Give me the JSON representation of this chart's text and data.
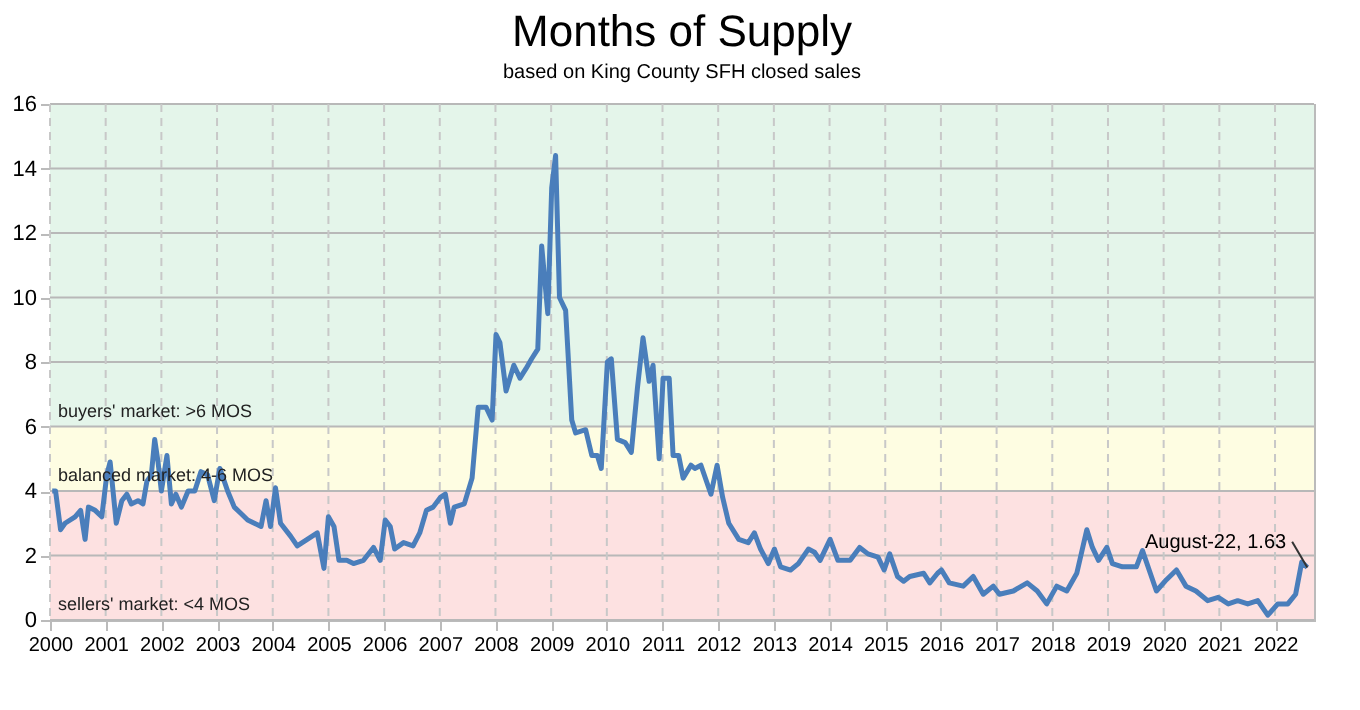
{
  "chart_data": {
    "type": "line",
    "title": "Months of Supply",
    "subtitle": "based on King County SFH closed sales",
    "x": [
      2000.04,
      2000.1,
      2000.19,
      2000.27,
      2000.45,
      2000.55,
      2000.63,
      2000.69,
      2000.81,
      2000.93,
      2001.02,
      2001.08,
      2001.19,
      2001.29,
      2001.38,
      2001.46,
      2001.58,
      2001.67,
      2001.74,
      2001.82,
      2001.88,
      2001.94,
      2002.0,
      2002.1,
      2002.18,
      2002.26,
      2002.36,
      2002.48,
      2002.6,
      2002.71,
      2002.83,
      2002.95,
      2003.05,
      2003.19,
      2003.31,
      2003.43,
      2003.55,
      2003.67,
      2003.79,
      2003.88,
      2003.96,
      2004.05,
      2004.14,
      2004.32,
      2004.44,
      2004.62,
      2004.8,
      2004.92,
      2005.0,
      2005.1,
      2005.19,
      2005.33,
      2005.45,
      2005.63,
      2005.81,
      2005.93,
      2006.02,
      2006.11,
      2006.19,
      2006.35,
      2006.52,
      2006.64,
      2006.76,
      2006.88,
      2007.01,
      2007.1,
      2007.19,
      2007.26,
      2007.44,
      2007.58,
      2007.69,
      2007.83,
      2007.94,
      2008.01,
      2008.08,
      2008.19,
      2008.33,
      2008.44,
      2008.55,
      2008.65,
      2008.76,
      2008.83,
      2008.94,
      2009.01,
      2009.08,
      2009.15,
      2009.26,
      2009.37,
      2009.44,
      2009.62,
      2009.73,
      2009.83,
      2009.9,
      2010.01,
      2010.08,
      2010.19,
      2010.33,
      2010.44,
      2010.55,
      2010.65,
      2010.76,
      2010.83,
      2010.94,
      2011.01,
      2011.12,
      2011.19,
      2011.29,
      2011.37,
      2011.51,
      2011.58,
      2011.69,
      2011.87,
      2011.98,
      2012.08,
      2012.19,
      2012.37,
      2012.54,
      2012.65,
      2012.76,
      2012.9,
      2013.01,
      2013.12,
      2013.3,
      2013.44,
      2013.62,
      2013.73,
      2013.83,
      2014.01,
      2014.15,
      2014.37,
      2014.54,
      2014.69,
      2014.87,
      2014.98,
      2015.08,
      2015.22,
      2015.33,
      2015.44,
      2015.69,
      2015.8,
      2015.94,
      2016.01,
      2016.15,
      2016.4,
      2016.58,
      2016.76,
      2016.94,
      2017.05,
      2017.3,
      2017.55,
      2017.73,
      2017.9,
      2018.08,
      2018.26,
      2018.44,
      2018.62,
      2018.72,
      2018.83,
      2018.98,
      2019.08,
      2019.26,
      2019.51,
      2019.62,
      2019.76,
      2019.87,
      2020.05,
      2020.23,
      2020.4,
      2020.58,
      2020.79,
      2020.98,
      2021.16,
      2021.33,
      2021.51,
      2021.69,
      2021.87,
      2022.05,
      2022.23,
      2022.37,
      2022.48,
      2022.58
    ],
    "series": [
      {
        "color": "#4a7ebb",
        "values": [
          4.0,
          4.0,
          2.8,
          3.0,
          3.2,
          3.4,
          2.5,
          3.5,
          3.4,
          3.2,
          4.5,
          4.9,
          3.0,
          3.7,
          3.9,
          3.6,
          3.7,
          3.6,
          4.3,
          4.5,
          5.6,
          4.9,
          4.0,
          5.1,
          3.6,
          3.9,
          3.5,
          4.0,
          4.0,
          4.6,
          4.5,
          3.7,
          4.7,
          4.0,
          3.5,
          3.3,
          3.1,
          3.0,
          2.9,
          3.7,
          2.9,
          4.1,
          3.0,
          2.6,
          2.3,
          2.5,
          2.7,
          1.6,
          3.2,
          2.9,
          1.85,
          1.85,
          1.75,
          1.85,
          2.25,
          1.85,
          3.1,
          2.9,
          2.2,
          2.4,
          2.3,
          2.7,
          3.4,
          3.5,
          3.8,
          3.9,
          3.0,
          3.5,
          3.6,
          4.4,
          6.6,
          6.6,
          6.2,
          8.85,
          8.6,
          7.1,
          7.9,
          7.5,
          7.8,
          8.1,
          8.4,
          11.6,
          9.5,
          13.4,
          14.4,
          10.0,
          9.6,
          6.2,
          5.8,
          5.9,
          5.1,
          5.1,
          4.7,
          8.0,
          8.1,
          5.6,
          5.5,
          5.2,
          7.2,
          8.75,
          7.4,
          7.9,
          5.0,
          7.5,
          7.5,
          5.1,
          5.1,
          4.4,
          4.8,
          4.7,
          4.8,
          3.9,
          4.8,
          3.8,
          3.0,
          2.5,
          2.4,
          2.7,
          2.2,
          1.75,
          2.2,
          1.65,
          1.55,
          1.75,
          2.2,
          2.1,
          1.85,
          2.5,
          1.85,
          1.85,
          2.25,
          2.05,
          1.95,
          1.55,
          2.05,
          1.35,
          1.2,
          1.35,
          1.45,
          1.15,
          1.45,
          1.55,
          1.15,
          1.05,
          1.35,
          0.8,
          1.05,
          0.8,
          0.9,
          1.15,
          0.9,
          0.5,
          1.05,
          0.9,
          1.45,
          2.8,
          2.25,
          1.85,
          2.25,
          1.75,
          1.65,
          1.65,
          2.15,
          1.45,
          0.9,
          1.25,
          1.55,
          1.05,
          0.9,
          0.6,
          0.7,
          0.5,
          0.6,
          0.5,
          0.6,
          0.15,
          0.5,
          0.5,
          0.8,
          1.8,
          1.63
        ]
      }
    ],
    "xlim": [
      2000,
      2022.7
    ],
    "xticks": [
      2000,
      2001,
      2002,
      2003,
      2004,
      2005,
      2006,
      2007,
      2008,
      2009,
      2010,
      2011,
      2012,
      2013,
      2014,
      2015,
      2016,
      2017,
      2018,
      2019,
      2020,
      2021,
      2022
    ],
    "ylim": [
      0,
      16
    ],
    "yticks": [
      0,
      2,
      4,
      6,
      8,
      10,
      12,
      14,
      16
    ],
    "grid": true,
    "marker": "none",
    "line_style": "solid",
    "bands": [
      {
        "axis": "y",
        "from": 0,
        "to": 4,
        "label": "sellers' market: <4 MOS",
        "color": "#fde1e1"
      },
      {
        "axis": "y",
        "from": 4,
        "to": 6,
        "label": "balanced market: 4-6 MOS",
        "color": "#fefde2"
      },
      {
        "axis": "y",
        "from": 6,
        "to": 16,
        "label": "buyers' market: >6 MOS",
        "color": "#e4f5ea"
      }
    ],
    "annotations": [
      {
        "text": "August-22, 1.63",
        "x": 2022.58,
        "y": 1.63
      }
    ]
  }
}
